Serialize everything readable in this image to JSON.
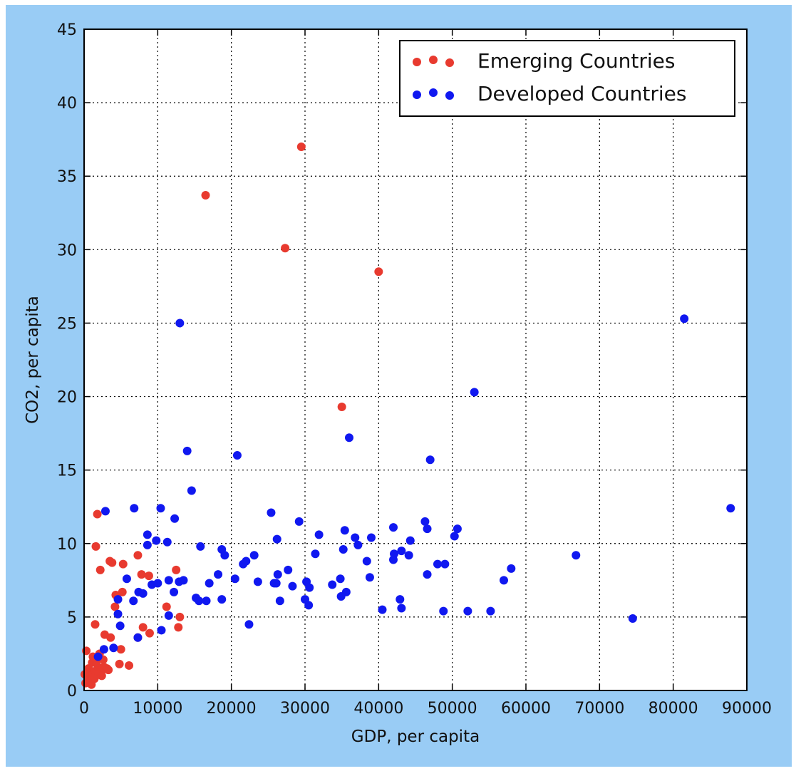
{
  "chart_data": {
    "type": "scatter",
    "title": "",
    "xlabel": "GDP, per capita",
    "ylabel": "CO2, per capita",
    "xlim": [
      0,
      90000
    ],
    "ylim": [
      0,
      45
    ],
    "xticks": [
      "0",
      "10000",
      "20000",
      "30000",
      "40000",
      "50000",
      "60000",
      "70000",
      "80000",
      "90000"
    ],
    "yticks": [
      "0",
      "5",
      "10",
      "15",
      "20",
      "25",
      "30",
      "35",
      "40",
      "45"
    ],
    "grid": true,
    "legend_placement": "top-right",
    "background_color": "#99ccf5",
    "series": [
      {
        "name": "Emerging Countries",
        "color": "#e83a2f",
        "points": [
          [
            29500,
            37.0
          ],
          [
            16500,
            33.7
          ],
          [
            27300,
            30.1
          ],
          [
            40000,
            28.5
          ],
          [
            35000,
            19.3
          ],
          [
            1800,
            12.0
          ],
          [
            1600,
            9.8
          ],
          [
            7300,
            9.2
          ],
          [
            3500,
            8.8
          ],
          [
            3800,
            8.7
          ],
          [
            5300,
            8.6
          ],
          [
            2200,
            8.2
          ],
          [
            12500,
            8.2
          ],
          [
            7800,
            7.9
          ],
          [
            8800,
            7.8
          ],
          [
            5200,
            6.7
          ],
          [
            4300,
            6.5
          ],
          [
            4200,
            5.7
          ],
          [
            11200,
            5.7
          ],
          [
            13000,
            5.0
          ],
          [
            12800,
            4.3
          ],
          [
            8000,
            4.3
          ],
          [
            1500,
            4.5
          ],
          [
            8900,
            3.9
          ],
          [
            2800,
            3.8
          ],
          [
            3600,
            3.6
          ],
          [
            7300,
            3.6
          ],
          [
            5000,
            2.8
          ],
          [
            300,
            2.7
          ],
          [
            4800,
            1.8
          ],
          [
            6100,
            1.7
          ],
          [
            2100,
            2.5
          ],
          [
            3100,
            1.5
          ],
          [
            1100,
            1.9
          ],
          [
            1700,
            2.0
          ],
          [
            2700,
            1.6
          ],
          [
            600,
            1.5
          ],
          [
            1300,
            1.3
          ],
          [
            2300,
            1.2
          ],
          [
            3300,
            1.4
          ],
          [
            1800,
            1.1
          ],
          [
            900,
            1.0
          ],
          [
            400,
            1.2
          ],
          [
            1400,
            0.8
          ],
          [
            700,
            0.9
          ],
          [
            200,
            0.5
          ],
          [
            500,
            0.6
          ],
          [
            1000,
            0.4
          ],
          [
            2400,
            1.0
          ],
          [
            1900,
            1.6
          ],
          [
            1200,
            2.3
          ],
          [
            2600,
            2.1
          ],
          [
            100,
            1.1
          ]
        ]
      },
      {
        "name": "Developed Countries",
        "color": "#1018f0",
        "points": [
          [
            81500,
            25.3
          ],
          [
            13000,
            25.0
          ],
          [
            53000,
            20.3
          ],
          [
            36000,
            17.2
          ],
          [
            47000,
            15.7
          ],
          [
            14000,
            16.3
          ],
          [
            20800,
            16.0
          ],
          [
            14600,
            13.6
          ],
          [
            87800,
            12.4
          ],
          [
            2900,
            12.2
          ],
          [
            6800,
            12.4
          ],
          [
            10400,
            12.4
          ],
          [
            12300,
            11.7
          ],
          [
            25400,
            12.1
          ],
          [
            29200,
            11.5
          ],
          [
            46300,
            11.5
          ],
          [
            46600,
            11.0
          ],
          [
            42000,
            11.1
          ],
          [
            50700,
            11.0
          ],
          [
            50300,
            10.5
          ],
          [
            35400,
            10.9
          ],
          [
            31900,
            10.6
          ],
          [
            8600,
            10.6
          ],
          [
            9800,
            10.2
          ],
          [
            11300,
            10.1
          ],
          [
            8600,
            9.9
          ],
          [
            26200,
            10.3
          ],
          [
            36800,
            10.4
          ],
          [
            39000,
            10.4
          ],
          [
            44300,
            10.2
          ],
          [
            15800,
            9.8
          ],
          [
            37200,
            9.9
          ],
          [
            18700,
            9.6
          ],
          [
            22000,
            8.8
          ],
          [
            21600,
            8.6
          ],
          [
            23100,
            9.2
          ],
          [
            19100,
            9.2
          ],
          [
            31400,
            9.3
          ],
          [
            35200,
            9.6
          ],
          [
            42100,
            9.3
          ],
          [
            43100,
            9.5
          ],
          [
            44100,
            9.2
          ],
          [
            42000,
            8.9
          ],
          [
            38400,
            8.8
          ],
          [
            66800,
            9.2
          ],
          [
            18200,
            7.9
          ],
          [
            27700,
            8.2
          ],
          [
            26300,
            7.9
          ],
          [
            30200,
            7.4
          ],
          [
            34800,
            7.6
          ],
          [
            38800,
            7.7
          ],
          [
            48000,
            8.6
          ],
          [
            49000,
            8.6
          ],
          [
            58000,
            8.3
          ],
          [
            46600,
            7.9
          ],
          [
            57000,
            7.5
          ],
          [
            17000,
            7.3
          ],
          [
            20500,
            7.6
          ],
          [
            23600,
            7.4
          ],
          [
            26100,
            7.3
          ],
          [
            25800,
            7.3
          ],
          [
            28300,
            7.1
          ],
          [
            30600,
            7.0
          ],
          [
            33700,
            7.2
          ],
          [
            35600,
            6.7
          ],
          [
            9200,
            7.2
          ],
          [
            10000,
            7.3
          ],
          [
            11500,
            7.5
          ],
          [
            12900,
            7.4
          ],
          [
            13500,
            7.5
          ],
          [
            7400,
            6.7
          ],
          [
            8000,
            6.6
          ],
          [
            6700,
            6.1
          ],
          [
            12200,
            6.7
          ],
          [
            15200,
            6.3
          ],
          [
            15600,
            6.1
          ],
          [
            16600,
            6.1
          ],
          [
            18700,
            6.2
          ],
          [
            26600,
            6.1
          ],
          [
            30000,
            6.2
          ],
          [
            34900,
            6.4
          ],
          [
            42900,
            6.2
          ],
          [
            43100,
            5.6
          ],
          [
            40500,
            5.5
          ],
          [
            30500,
            5.8
          ],
          [
            48800,
            5.4
          ],
          [
            52100,
            5.4
          ],
          [
            55200,
            5.4
          ],
          [
            74500,
            4.9
          ],
          [
            4600,
            6.2
          ],
          [
            5800,
            7.6
          ],
          [
            4600,
            5.2
          ],
          [
            11500,
            5.1
          ],
          [
            22400,
            4.5
          ],
          [
            4900,
            4.4
          ],
          [
            10500,
            4.1
          ],
          [
            7300,
            3.6
          ],
          [
            4000,
            2.9
          ],
          [
            2700,
            2.8
          ],
          [
            1900,
            2.3
          ]
        ]
      }
    ]
  }
}
